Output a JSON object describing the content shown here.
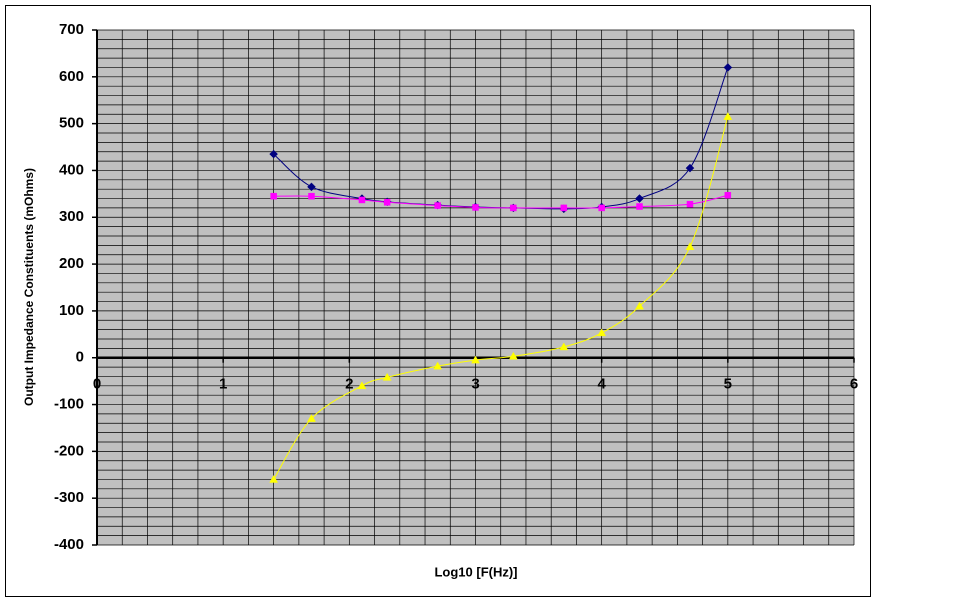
{
  "chart_data": {
    "type": "line",
    "x_label": "Log10 [F(Hz)]",
    "y_label": "Output Impedance Constituents (mOhms)",
    "x": [
      1.4,
      1.7,
      2.1,
      2.3,
      2.7,
      3.0,
      3.3,
      3.7,
      4.0,
      4.3,
      4.7,
      5.0
    ],
    "series": [
      {
        "color": "#000080",
        "marker": "diamond",
        "values": [
          435,
          365,
          340,
          333,
          326,
          322,
          320,
          318,
          322,
          340,
          405,
          620
        ]
      },
      {
        "color": "#ff00ff",
        "marker": "square",
        "values": [
          345,
          345,
          337,
          332,
          325,
          321,
          320,
          320,
          320,
          323,
          328,
          347
        ]
      },
      {
        "color": "#ffff00",
        "marker": "triangle",
        "values": [
          -260,
          -130,
          -60,
          -42,
          -18,
          -5,
          3,
          23,
          53,
          110,
          237,
          515
        ]
      }
    ],
    "xlim": [
      0,
      6
    ],
    "xticks": [
      0,
      1,
      2,
      3,
      4,
      5,
      6
    ],
    "ylim": [
      -400,
      700
    ],
    "yticks": [
      -400,
      -300,
      -200,
      -100,
      0,
      100,
      200,
      300,
      400,
      500,
      600,
      700
    ],
    "x_grid": [
      0,
      0.2,
      0.4,
      0.6,
      0.8,
      1,
      1.2,
      1.4,
      1.6,
      1.8,
      2,
      2.2,
      2.4,
      2.6,
      2.8,
      3,
      3.2,
      3.4,
      3.6,
      3.8,
      4,
      4.2,
      4.4,
      4.6,
      4.8,
      5,
      5.2,
      5.4,
      5.6,
      5.8,
      6
    ],
    "y_grid": [
      -400,
      -380,
      -360,
      -340,
      -320,
      -300,
      -280,
      -260,
      -240,
      -220,
      -200,
      -180,
      -160,
      -140,
      -120,
      -100,
      -80,
      -60,
      -40,
      -20,
      0,
      20,
      40,
      60,
      80,
      100,
      120,
      140,
      160,
      180,
      200,
      220,
      240,
      260,
      280,
      300,
      320,
      340,
      360,
      380,
      400,
      420,
      440,
      460,
      480,
      500,
      520,
      540,
      560,
      580,
      600,
      620,
      640,
      660,
      680,
      700
    ],
    "plot_background": "#c0c0c0",
    "smooth": true
  }
}
